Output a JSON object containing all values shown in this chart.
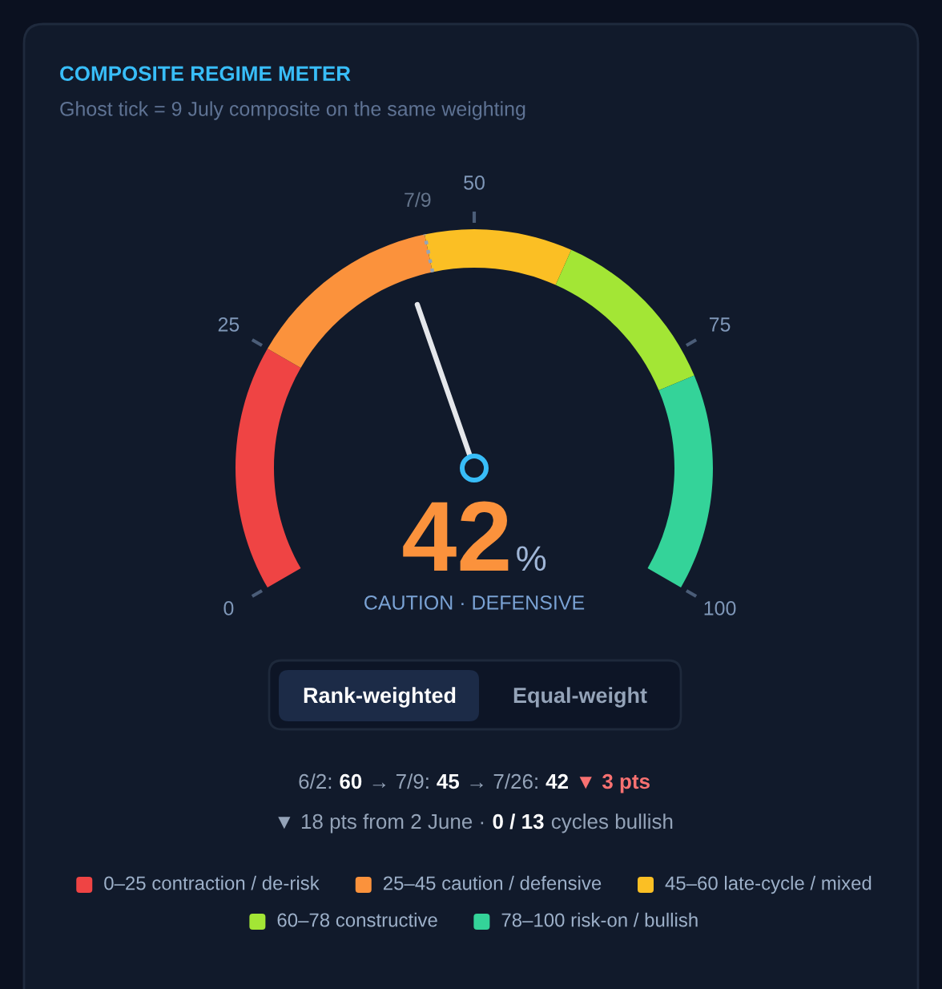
{
  "chart_data": {
    "type": "donut",
    "title": "COMPOSITE REGIME METER",
    "subtitle": "Ghost tick = 9 July composite on the same weighting",
    "categories": [
      "0–25 contraction / de-risk",
      "25–45 caution / defensive",
      "45–60 late-cycle / mixed",
      "60–78 constructive",
      "78–100 risk-on / bullish"
    ],
    "values": [
      25,
      20,
      15,
      18,
      22
    ],
    "colors": [
      "#ef4444",
      "#fb923c",
      "#fbbf24",
      "#a3e635",
      "#34d399"
    ],
    "needle": "25–45 caution / defensive",
    "legend": "bottom",
    "annotations": [
      "0",
      "25",
      "50",
      "75",
      "100",
      "7/9",
      "42",
      "%",
      "CAUTION · DEFENSIVE",
      "Rank-weighted",
      "Equal-weight",
      "6/2:",
      "60",
      "→ 7/9:",
      "45",
      "→ 7/26:",
      "42",
      "▼ 3 pts",
      "▼ 18 pts from 2 June ·",
      "0 / 13",
      "cycles bullish"
    ]
  }
}
